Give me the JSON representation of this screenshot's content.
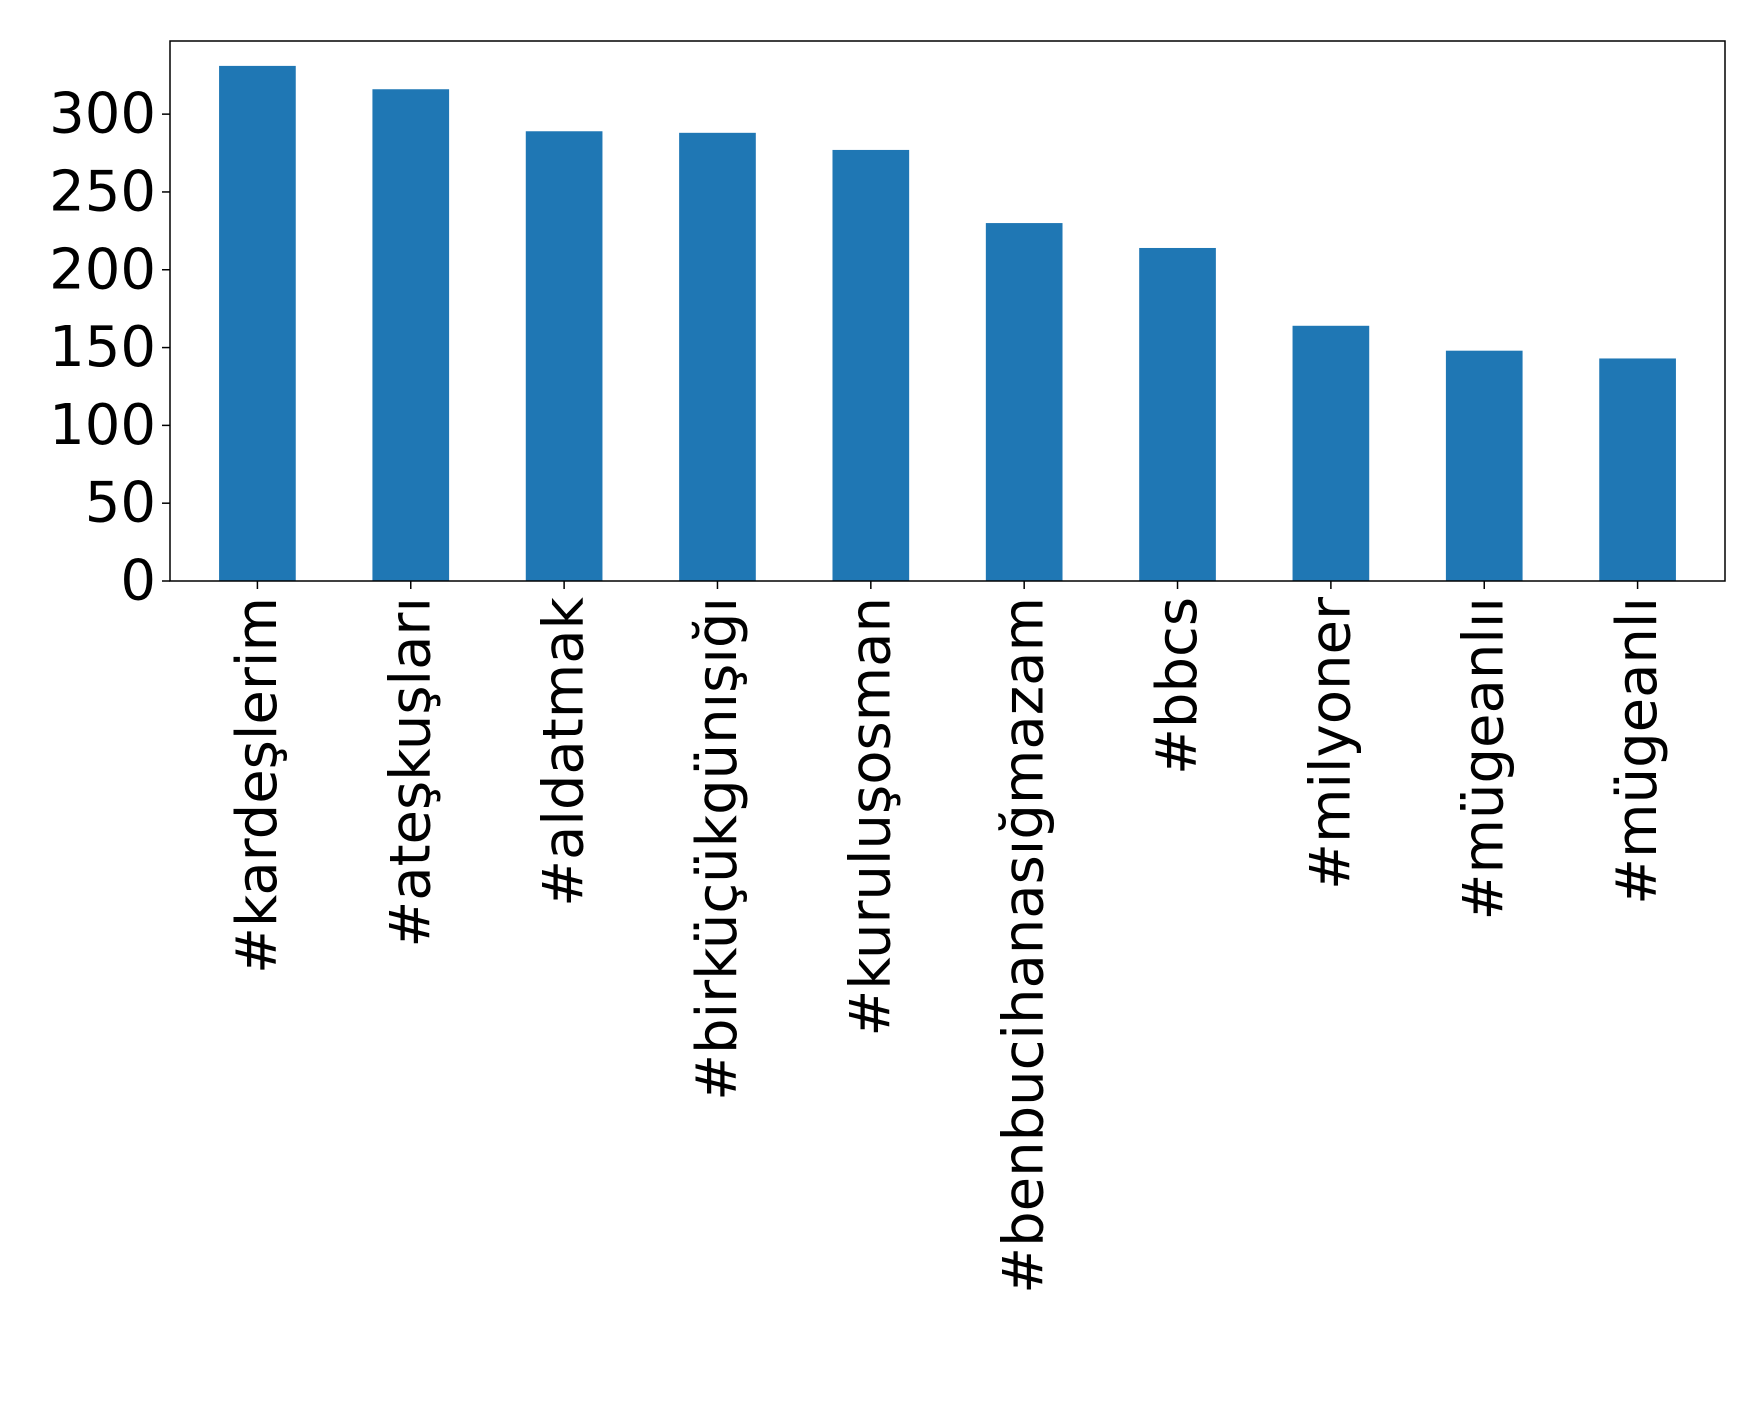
{
  "chart_data": {
    "type": "bar",
    "title": "",
    "xlabel": "",
    "ylabel": "",
    "categories": [
      "#kardeşlerim",
      "#ateşkuşları",
      "#aldatmak",
      "#birküçükgünışığı",
      "#kuruluşosman",
      "#benbucihanasığmazam",
      "#bbcs",
      "#milyoner",
      "#mügeanlıı",
      "#mügeanlı"
    ],
    "values": [
      331,
      316,
      289,
      288,
      277,
      230,
      214,
      164,
      148,
      143
    ],
    "ylim": [
      0,
      347
    ],
    "yticks": [
      0,
      50,
      100,
      150,
      200,
      250,
      300
    ],
    "bar_color": "#1f77b4",
    "grid": false,
    "legend": "none"
  }
}
